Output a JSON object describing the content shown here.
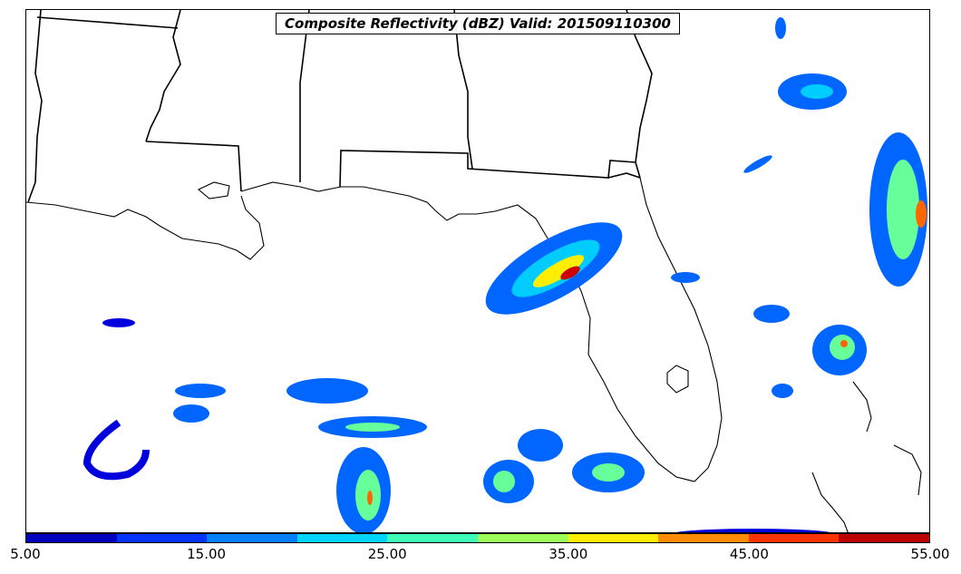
{
  "title": "Composite Reflectivity (dBZ) Valid: 201509110300",
  "colorbar": {
    "colors": [
      "#0000bf",
      "#0033ff",
      "#0080ff",
      "#00d5ff",
      "#3dffb8",
      "#9dff5a",
      "#ffee00",
      "#ff8c00",
      "#ff3300",
      "#bb0000"
    ],
    "labels": [
      "5.00",
      "15.00",
      "25.00",
      "35.00",
      "45.00",
      "55.00"
    ]
  },
  "map": {
    "region": "Gulf of Mexico / Southeastern United States",
    "land_color": "#ffffff",
    "boundary_color": "#000000",
    "reflectivity_palette": {
      "low": "#0000dd",
      "light": "#0066ff",
      "moderate": "#00ccff",
      "medium": "#66ff99",
      "heavy": "#ffee00",
      "intense": "#ff6600",
      "extreme": "#cc0000"
    }
  }
}
